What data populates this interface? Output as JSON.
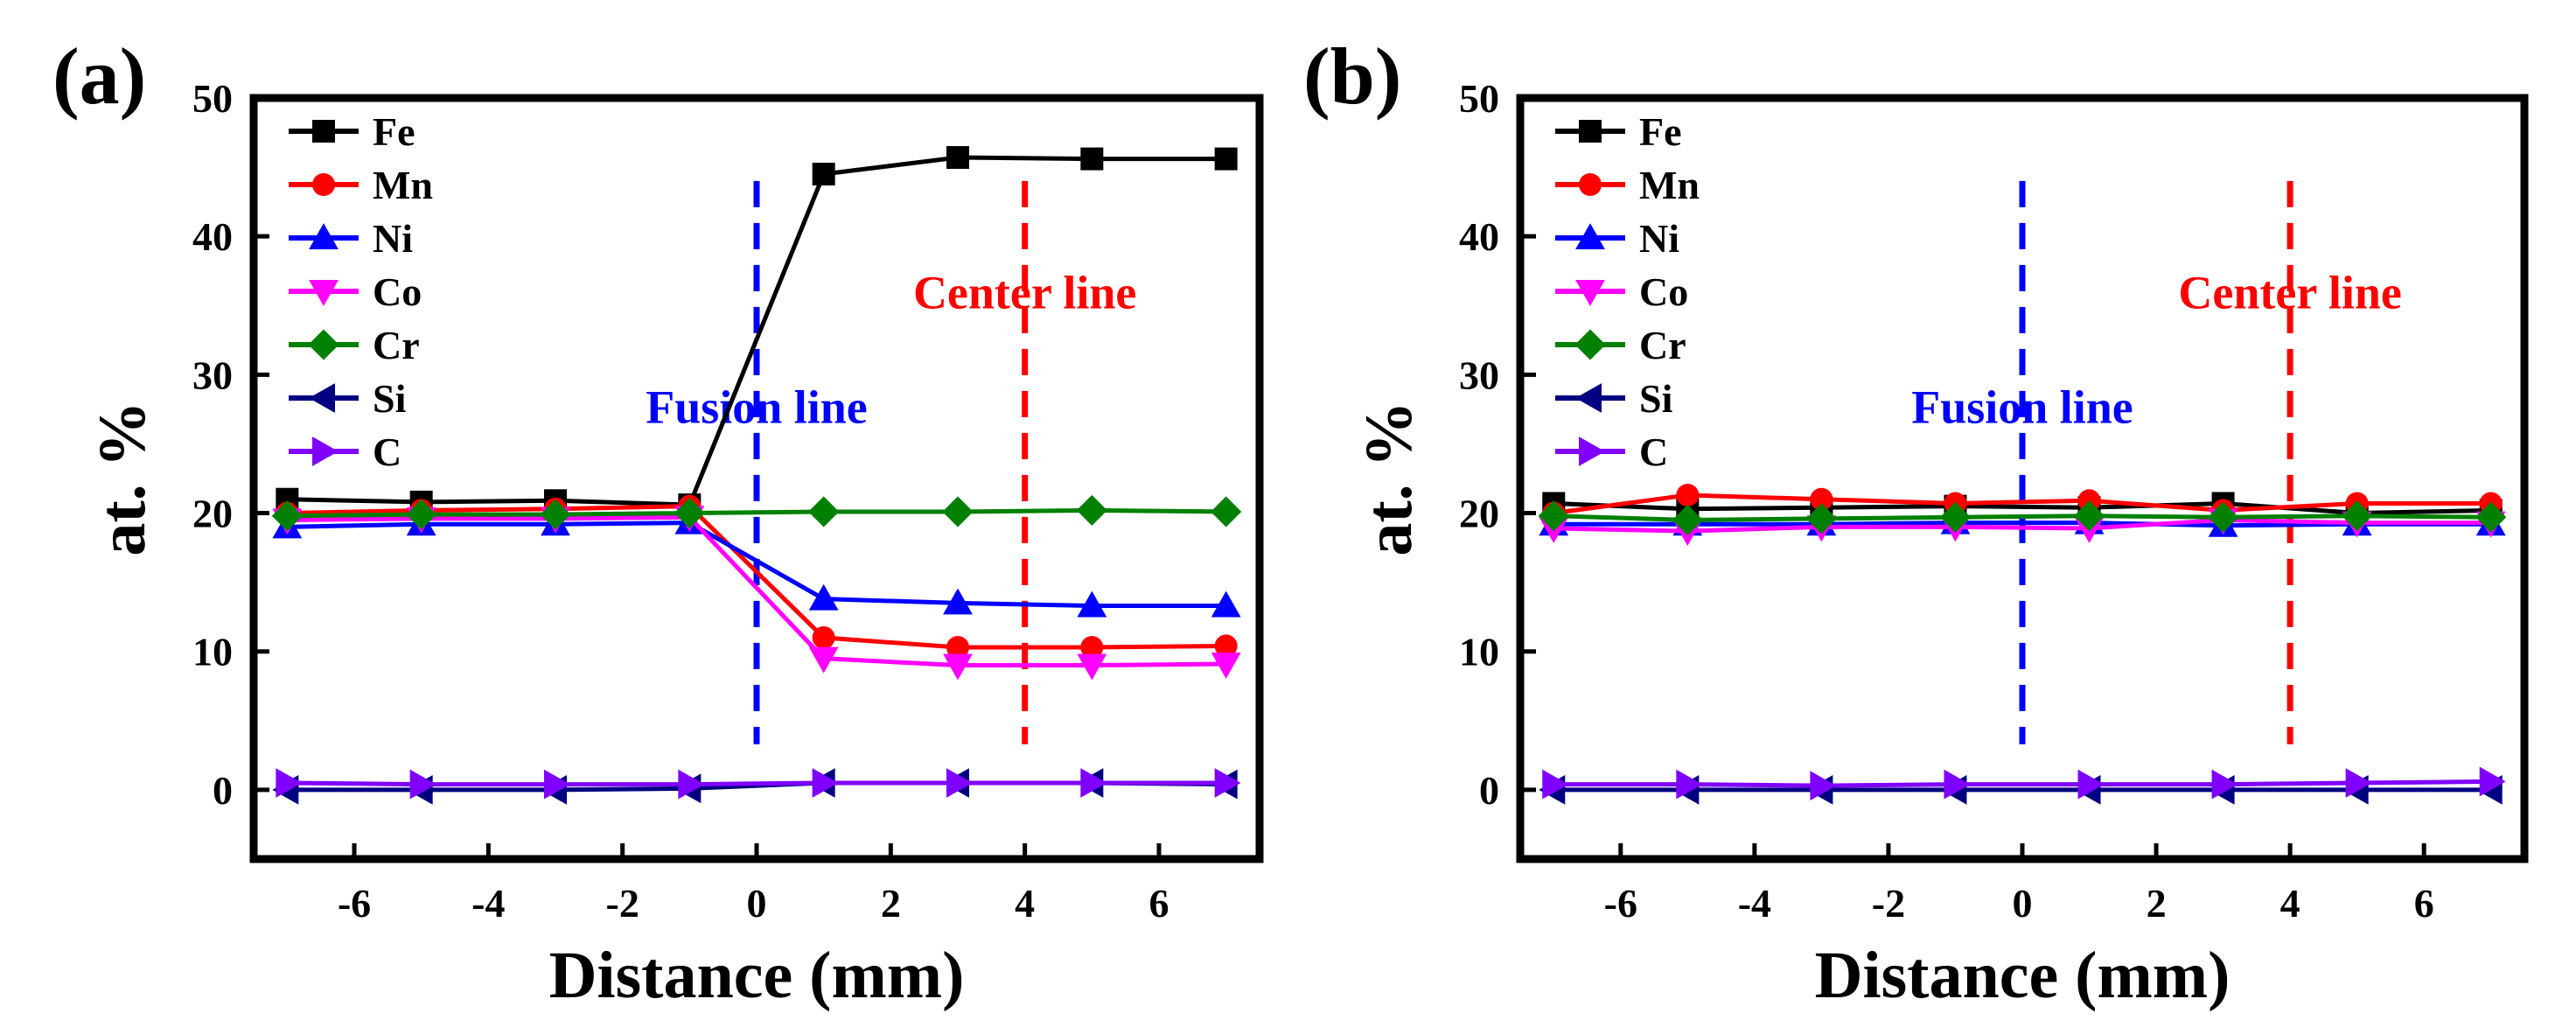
{
  "colors": {
    "Fe": "#000000",
    "Mn": "#ff0000",
    "Ni": "#0000ff",
    "Co": "#ff00ff",
    "Cr": "#008000",
    "Si": "#000080",
    "C": "#8000ff",
    "fusion_line": "#0000ff",
    "center_line": "#ff0000"
  },
  "chart_data": [
    {
      "type": "line",
      "panel_label": "(a)",
      "title": "",
      "xlabel": "Distance (mm)",
      "ylabel": "at. %",
      "xlim": [
        -7.5,
        7.5
      ],
      "ylim": [
        -5,
        50
      ],
      "xticks": [
        -6,
        -4,
        -2,
        0,
        2,
        4,
        6
      ],
      "yticks": [
        0,
        10,
        20,
        30,
        40,
        50
      ],
      "x": [
        -7,
        -5,
        -3,
        -1,
        1,
        3,
        5,
        7
      ],
      "legend_position": "top-left",
      "series": [
        {
          "name": "Fe",
          "marker": "square",
          "values": [
            21.0,
            20.8,
            20.9,
            20.6,
            44.5,
            45.7,
            45.6,
            45.6
          ]
        },
        {
          "name": "Mn",
          "marker": "circle",
          "values": [
            20.0,
            20.2,
            20.3,
            20.5,
            11.0,
            10.3,
            10.3,
            10.4
          ]
        },
        {
          "name": "Ni",
          "marker": "triangle-up",
          "values": [
            19.0,
            19.2,
            19.2,
            19.3,
            13.8,
            13.5,
            13.3,
            13.3
          ]
        },
        {
          "name": "Co",
          "marker": "triangle-down",
          "values": [
            19.5,
            19.6,
            19.6,
            19.7,
            9.5,
            9.0,
            9.0,
            9.1
          ]
        },
        {
          "name": "Cr",
          "marker": "diamond",
          "values": [
            19.8,
            19.9,
            19.9,
            20.0,
            20.1,
            20.1,
            20.2,
            20.1
          ]
        },
        {
          "name": "Si",
          "marker": "triangle-left",
          "values": [
            0.0,
            0.0,
            0.0,
            0.1,
            0.5,
            0.5,
            0.5,
            0.4
          ]
        },
        {
          "name": "C",
          "marker": "triangle-right",
          "values": [
            0.5,
            0.4,
            0.4,
            0.4,
            0.5,
            0.5,
            0.5,
            0.5
          ]
        }
      ],
      "annotations": [
        {
          "text": "Fusion line",
          "x": 0,
          "color_key": "fusion_line"
        },
        {
          "text": "Center line",
          "x": 4,
          "color_key": "center_line"
        }
      ]
    },
    {
      "type": "line",
      "panel_label": "(b)",
      "title": "",
      "xlabel": "Distance (mm)",
      "ylabel": "at. %",
      "xlim": [
        -7.5,
        7.5
      ],
      "ylim": [
        -5,
        50
      ],
      "xticks": [
        -6,
        -4,
        -2,
        0,
        2,
        4,
        6
      ],
      "yticks": [
        0,
        10,
        20,
        30,
        40,
        50
      ],
      "x": [
        -7,
        -5,
        -3,
        -1,
        1,
        3,
        5,
        7
      ],
      "legend_position": "top-left",
      "series": [
        {
          "name": "Fe",
          "marker": "square",
          "values": [
            20.7,
            20.3,
            20.4,
            20.5,
            20.4,
            20.7,
            20.0,
            20.2
          ]
        },
        {
          "name": "Mn",
          "marker": "circle",
          "values": [
            20.0,
            21.3,
            21.0,
            20.7,
            20.9,
            20.2,
            20.7,
            20.7
          ]
        },
        {
          "name": "Ni",
          "marker": "triangle-up",
          "values": [
            19.2,
            19.2,
            19.2,
            19.3,
            19.3,
            19.1,
            19.2,
            19.2
          ]
        },
        {
          "name": "Co",
          "marker": "triangle-down",
          "values": [
            18.9,
            18.7,
            19.0,
            19.0,
            18.9,
            19.5,
            19.3,
            19.3
          ]
        },
        {
          "name": "Cr",
          "marker": "diamond",
          "values": [
            19.8,
            19.5,
            19.6,
            19.7,
            19.8,
            19.7,
            19.8,
            19.7
          ]
        },
        {
          "name": "Si",
          "marker": "triangle-left",
          "values": [
            0.0,
            0.0,
            0.0,
            0.0,
            0.0,
            0.0,
            0.0,
            0.0
          ]
        },
        {
          "name": "C",
          "marker": "triangle-right",
          "values": [
            0.4,
            0.4,
            0.3,
            0.4,
            0.4,
            0.4,
            0.5,
            0.6
          ]
        }
      ],
      "annotations": [
        {
          "text": "Fusion line",
          "x": 0,
          "color_key": "fusion_line"
        },
        {
          "text": "Center line",
          "x": 4,
          "color_key": "center_line"
        }
      ]
    }
  ]
}
